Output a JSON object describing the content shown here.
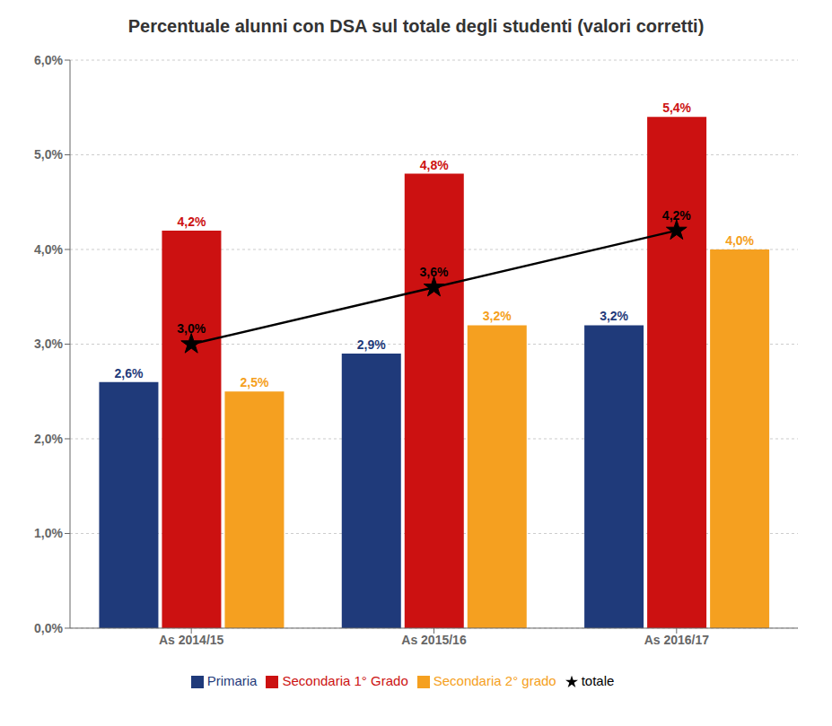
{
  "chart_data": {
    "type": "bar",
    "title": "Percentuale alunni con DSA sul totale degli studenti (valori corretti)",
    "categories": [
      "As 2014/15",
      "As 2015/16",
      "As 2016/17"
    ],
    "series": [
      {
        "name": "Primaria",
        "type": "bar",
        "color": "#1F3A7A",
        "values": [
          2.6,
          2.9,
          3.2
        ],
        "value_labels": [
          "2,6%",
          "2,9%",
          "3,2%"
        ]
      },
      {
        "name": "Secondaria 1° Grado",
        "type": "bar",
        "color": "#CC1111",
        "values": [
          4.2,
          4.8,
          5.4
        ],
        "value_labels": [
          "4,2%",
          "4,8%",
          "5,4%"
        ]
      },
      {
        "name": "Secondaria 2° grado",
        "type": "bar",
        "color": "#F5A020",
        "values": [
          2.5,
          3.2,
          4.0
        ],
        "value_labels": [
          "2,5%",
          "3,2%",
          "4,0%"
        ]
      },
      {
        "name": "totale",
        "type": "line",
        "color": "#000000",
        "marker": "star",
        "line_style": "solid",
        "values": [
          3.0,
          3.6,
          4.2
        ],
        "value_labels": [
          "3,0%",
          "3,6%",
          "4,2%"
        ]
      }
    ],
    "ylim": [
      0.0,
      6.0
    ],
    "yticks": [
      {
        "value": 0.0,
        "label": "0,0%"
      },
      {
        "value": 1.0,
        "label": "1,0%"
      },
      {
        "value": 2.0,
        "label": "2,0%"
      },
      {
        "value": 3.0,
        "label": "3,0%"
      },
      {
        "value": 4.0,
        "label": "4,0%"
      },
      {
        "value": 5.0,
        "label": "5,0%"
      },
      {
        "value": 6.0,
        "label": "6,0%"
      }
    ],
    "grid": true,
    "legend": "bottom",
    "data_labels": true
  }
}
